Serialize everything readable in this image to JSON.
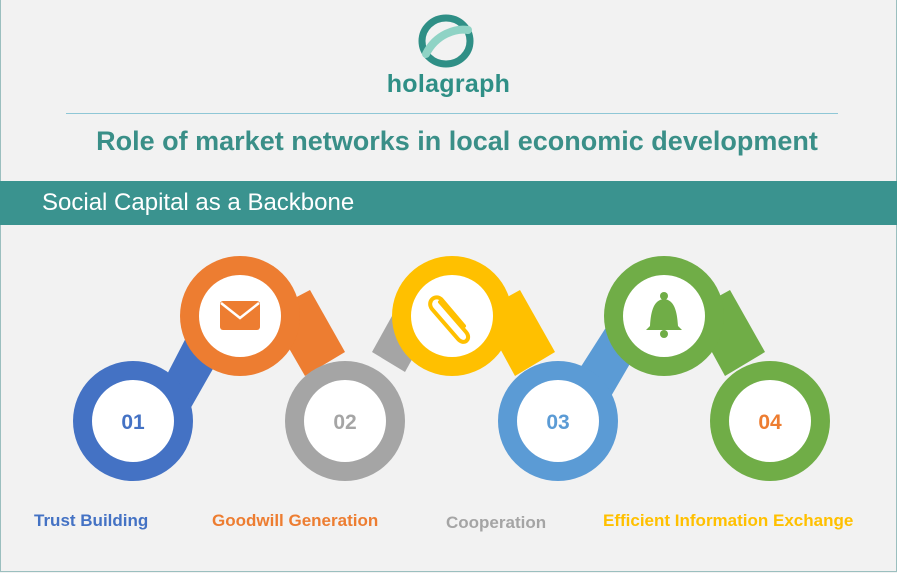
{
  "brand": {
    "name": "holagraph",
    "color": "#2f8f86"
  },
  "title": "Role of market networks in local economic development",
  "band": {
    "text": "Social Capital as a Backbone",
    "color": "#3a938f"
  },
  "steps": [
    {
      "number": "01",
      "label": "Trust Building",
      "color": "#4472c4",
      "icon": "envelope-icon",
      "icon_color": "#ed7d31"
    },
    {
      "number": "02",
      "label": "Goodwill Generation",
      "color": "#ed7d31",
      "icon": "paperclip-icon",
      "icon_color": "#ffc000"
    },
    {
      "number": "03",
      "label": "Cooperation",
      "color": "#a5a5a5",
      "icon": "bell-icon",
      "icon_color": "#70ad47"
    },
    {
      "number": "04",
      "label": "Efficient Information Exchange",
      "color": "#ffc000"
    }
  ],
  "colors": {
    "blue": "#4472c4",
    "orange": "#ed7d31",
    "gray": "#a5a5a5",
    "yellow": "#ffc000",
    "lightblue": "#5b9bd5",
    "green": "#70ad47"
  }
}
